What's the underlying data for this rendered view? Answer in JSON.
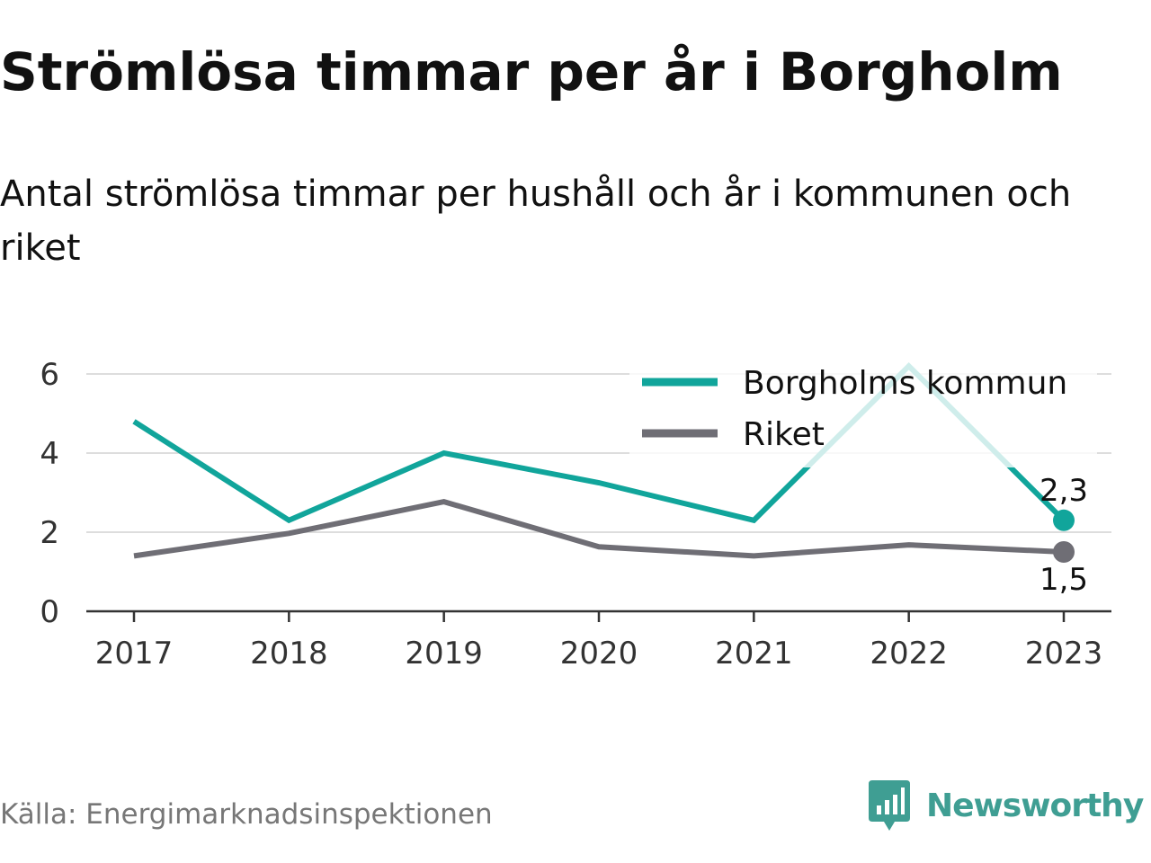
{
  "title": "Strömlösa timmar per år i Borgholm",
  "subtitle": "Antal strömlösa timmar per hushåll och år i kommunen och riket",
  "source": "Källa: Energimarknadsinspektionen",
  "brand": {
    "name": "Newsworthy",
    "logo_icon": "bar-chart-speech-bubble-icon",
    "color": "#3f9e93"
  },
  "chart_data": {
    "type": "line",
    "title": "Strömlösa timmar per år i Borgholm",
    "subtitle": "Antal strömlösa timmar per hushåll och år i kommunen och riket",
    "xlabel": "",
    "ylabel": "",
    "x": [
      "2017",
      "2018",
      "2019",
      "2020",
      "2021",
      "2022",
      "2023"
    ],
    "ylim": [
      0,
      6
    ],
    "yticks": [
      "0",
      "2",
      "4",
      "6"
    ],
    "grid": true,
    "legend": "top-right",
    "series": [
      {
        "name": "Borgholms kommun",
        "color": "#11a59b",
        "values": [
          4.8,
          2.3,
          4.0,
          3.25,
          2.3,
          6.2,
          2.3
        ],
        "end_label": "2,3"
      },
      {
        "name": "Riket",
        "color": "#6f6e75",
        "values": [
          1.4,
          1.97,
          2.77,
          1.63,
          1.4,
          1.68,
          1.5
        ],
        "end_label": "1,5"
      }
    ]
  }
}
